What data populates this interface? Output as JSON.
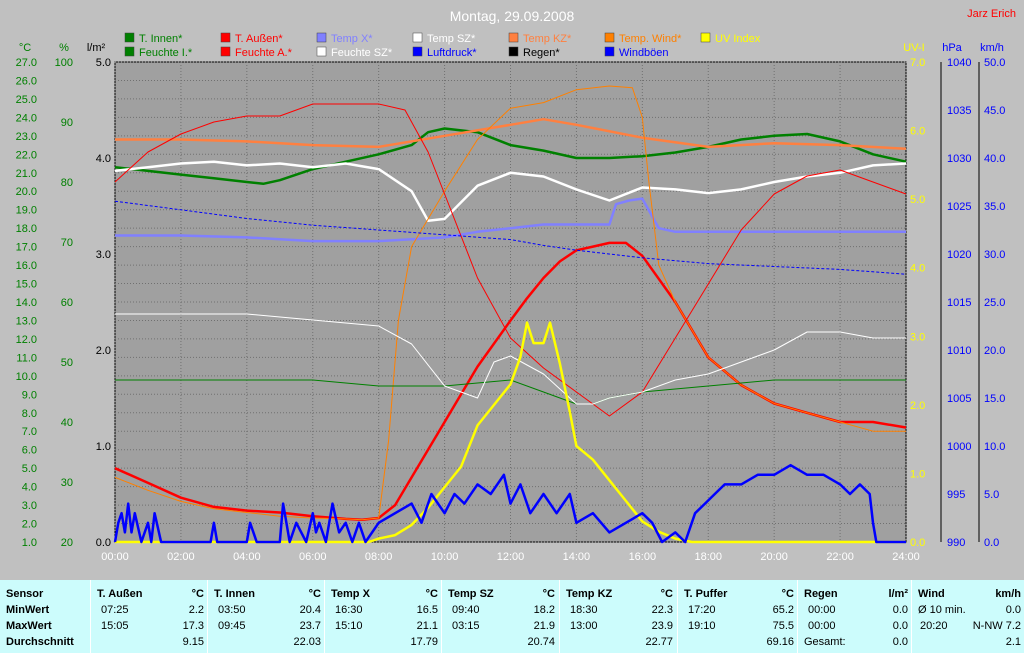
{
  "header": {
    "title": "Montag, 29.09.2008",
    "author": "Jarz Erich"
  },
  "axis_units": {
    "temp": "°C",
    "humidity": "%",
    "rain": "l/m²",
    "uv": "UV-I",
    "pressure": "hPa",
    "wind": "km/h"
  },
  "legend": [
    {
      "label": "T. Innen*",
      "color": "#008000"
    },
    {
      "label": "T. Außen*",
      "color": "#ff0000"
    },
    {
      "label": "Temp X*",
      "color": "#8080ff"
    },
    {
      "label": "Temp SZ*",
      "color": "#ffffff"
    },
    {
      "label": "Temp KZ*",
      "color": "#ff8040"
    },
    {
      "label": "Temp. Wind*",
      "color": "#ff8000"
    },
    {
      "label": "UV Index",
      "color": "#ffff00"
    },
    {
      "label": "Feuchte I.*",
      "color": "#008000"
    },
    {
      "label": "Feuchte A.*",
      "color": "#ff0000"
    },
    {
      "label": "Feuchte SZ*",
      "color": "#ffffff"
    },
    {
      "label": "Luftdruck*",
      "color": "#0000ff"
    },
    {
      "label": "Regen*",
      "color": "#000000"
    },
    {
      "label": "Windböen",
      "color": "#0000ff"
    }
  ],
  "chart_data": {
    "type": "line",
    "title": "Montag, 29.09.2008",
    "x_ticks": [
      "00:00",
      "02:00",
      "04:00",
      "06:00",
      "08:00",
      "10:00",
      "12:00",
      "14:00",
      "16:00",
      "18:00",
      "20:00",
      "22:00",
      "24:00"
    ],
    "axes": {
      "temp": {
        "range": [
          1.0,
          27.0
        ],
        "ticks": [
          "27.0",
          "26.0",
          "25.0",
          "24.0",
          "23.0",
          "22.0",
          "21.0",
          "20.0",
          "19.0",
          "18.0",
          "17.0",
          "16.0",
          "15.0",
          "14.0",
          "13.0",
          "12.0",
          "11.0",
          "10.0",
          "9.0",
          "8.0",
          "7.0",
          "6.0",
          "5.0",
          "4.0",
          "3.0",
          "2.0",
          "1.0"
        ],
        "color": "#008000"
      },
      "humidity": {
        "range": [
          20,
          100
        ],
        "ticks": [
          "100",
          "90",
          "80",
          "70",
          "60",
          "50",
          "40",
          "30",
          "20"
        ],
        "color": "#008000"
      },
      "rain": {
        "range": [
          0.0,
          5.0
        ],
        "ticks": [
          "5.0",
          "4.0",
          "3.0",
          "2.0",
          "1.0",
          "0.0"
        ],
        "color": "#000000"
      },
      "uv": {
        "range": [
          0.0,
          7.0
        ],
        "ticks": [
          "7.0",
          "6.0",
          "5.0",
          "4.0",
          "3.0",
          "2.0",
          "1.0",
          "0.0"
        ],
        "color": "#ffff00"
      },
      "pressure": {
        "range": [
          990,
          1040
        ],
        "ticks": [
          "1040",
          "1035",
          "1030",
          "1025",
          "1020",
          "1015",
          "1010",
          "1005",
          "1000",
          "995",
          "990"
        ],
        "color": "#0000ff"
      },
      "wind": {
        "range": [
          0.0,
          50.0
        ],
        "ticks": [
          "50.0",
          "45.0",
          "40.0",
          "35.0",
          "30.0",
          "25.0",
          "20.0",
          "15.0",
          "10.0",
          "5.0",
          "0.0"
        ],
        "color": "#0000ff"
      }
    },
    "grid": true,
    "series": [
      {
        "name": "T. Außen*",
        "axis": "temp",
        "color": "#ff0000",
        "width": 2.5,
        "x": [
          0,
          1,
          2,
          3,
          4,
          5,
          6,
          7,
          7.5,
          8,
          8.5,
          9,
          10,
          11,
          12,
          12.5,
          13,
          13.5,
          14,
          14.5,
          15,
          15.5,
          16,
          17,
          18,
          19,
          20,
          21,
          22,
          23,
          24
        ],
        "y": [
          5.0,
          4.2,
          3.4,
          2.9,
          2.7,
          2.6,
          2.4,
          2.25,
          2.2,
          2.3,
          3.0,
          4.5,
          7.5,
          10.5,
          13.0,
          14.2,
          15.3,
          16.2,
          16.8,
          17.0,
          17.2,
          17.2,
          16.5,
          14.0,
          11.0,
          9.5,
          8.5,
          8.0,
          7.5,
          7.5,
          7.2
        ]
      },
      {
        "name": "T. Innen*",
        "axis": "temp",
        "color": "#008000",
        "width": 2.5,
        "x": [
          0,
          1,
          2,
          3,
          4,
          4.5,
          5,
          6,
          7,
          8,
          9,
          9.5,
          10,
          11,
          12,
          13,
          14,
          15,
          16,
          17,
          18,
          19,
          20,
          21,
          22,
          23,
          24
        ],
        "y": [
          21.3,
          21.1,
          20.9,
          20.7,
          20.5,
          20.4,
          20.6,
          21.2,
          21.6,
          22.0,
          22.5,
          23.2,
          23.4,
          23.2,
          22.5,
          22.2,
          21.8,
          21.8,
          21.9,
          22.1,
          22.4,
          22.8,
          23.0,
          23.1,
          22.7,
          22.0,
          21.6
        ]
      },
      {
        "name": "Temp KZ*",
        "axis": "temp",
        "color": "#ff8040",
        "width": 2.5,
        "x": [
          0,
          2,
          4,
          6,
          8,
          10,
          12,
          13,
          14,
          16,
          18,
          20,
          22,
          24
        ],
        "y": [
          22.8,
          22.8,
          22.7,
          22.5,
          22.4,
          23.0,
          23.6,
          23.9,
          23.6,
          22.9,
          22.4,
          22.6,
          22.5,
          22.3
        ]
      },
      {
        "name": "Temp SZ*",
        "axis": "temp",
        "color": "#ffffff",
        "width": 2.5,
        "x": [
          0,
          1,
          2,
          3,
          4,
          5,
          6,
          7,
          8,
          9,
          9.5,
          10,
          11,
          12,
          13,
          14,
          15,
          16,
          17,
          18,
          19,
          20,
          21,
          22,
          23,
          24
        ],
        "y": [
          21.1,
          21.3,
          21.5,
          21.6,
          21.4,
          21.5,
          21.3,
          21.5,
          21.2,
          20.0,
          18.4,
          18.5,
          20.3,
          21.0,
          20.8,
          20.1,
          19.5,
          20.2,
          20.1,
          19.9,
          20.1,
          20.5,
          20.8,
          21.0,
          21.4,
          21.5
        ]
      },
      {
        "name": "Temp X*",
        "axis": "temp",
        "color": "#8080ff",
        "width": 2.5,
        "x": [
          0,
          2,
          4,
          6,
          8,
          10,
          11,
          12,
          13,
          15,
          15.2,
          15.6,
          16,
          16.5,
          17,
          18,
          20,
          22,
          24
        ],
        "y": [
          17.6,
          17.6,
          17.5,
          17.3,
          17.3,
          17.5,
          17.8,
          18.0,
          18.2,
          18.2,
          19.3,
          19.5,
          19.6,
          18.0,
          17.8,
          17.8,
          17.8,
          17.8,
          17.8
        ]
      },
      {
        "name": "Temp. Wind*",
        "axis": "temp",
        "color": "#ff8000",
        "width": 1,
        "x": [
          0,
          1,
          2,
          3,
          4,
          5,
          6,
          7,
          7.5,
          8,
          8.3,
          8.6,
          9,
          10,
          11,
          12,
          13,
          14,
          15,
          15.7,
          16,
          16.2,
          16.5,
          17,
          18,
          19,
          20,
          21,
          22,
          23,
          24
        ],
        "y": [
          4.5,
          3.8,
          3.2,
          2.8,
          2.6,
          2.4,
          2.3,
          2.25,
          2.2,
          2.3,
          6.5,
          13.0,
          17.0,
          20.0,
          22.8,
          24.5,
          24.8,
          25.5,
          25.7,
          25.6,
          24.0,
          20.5,
          16.0,
          14.0,
          11.0,
          9.5,
          8.5,
          8.0,
          7.5,
          7.0,
          7.0
        ]
      },
      {
        "name": "Feuchte A.*",
        "axis": "humidity",
        "color": "#ff0000",
        "width": 1,
        "x": [
          0,
          1,
          2,
          3,
          4,
          5,
          6,
          7,
          8,
          8.8,
          9.5,
          10,
          11,
          12,
          13,
          14,
          15,
          16,
          17,
          18,
          19,
          20,
          21,
          22,
          23,
          24
        ],
        "y": [
          80,
          85,
          88,
          90,
          91,
          91,
          93,
          93,
          93,
          92,
          85,
          78,
          64,
          54,
          49,
          45,
          41,
          45,
          54,
          63,
          72,
          78,
          81,
          82,
          80,
          78
        ]
      },
      {
        "name": "Feuchte I.*",
        "axis": "humidity",
        "color": "#008000",
        "width": 1,
        "x": [
          0,
          2,
          4,
          6,
          8,
          10,
          12,
          13,
          14,
          14.5,
          15,
          16,
          18,
          20,
          22,
          24
        ],
        "y": [
          47,
          47,
          47,
          47,
          46,
          46,
          47,
          45,
          43,
          43,
          44,
          45,
          46,
          47,
          47,
          47
        ]
      },
      {
        "name": "Feuchte SZ*",
        "axis": "humidity",
        "color": "#ffffff",
        "width": 1,
        "x": [
          0,
          2,
          4,
          6,
          8,
          9,
          10,
          11,
          11.5,
          12,
          13,
          14,
          14.5,
          15,
          16,
          17,
          18,
          19,
          20,
          21,
          22,
          23,
          24
        ],
        "y": [
          58,
          58,
          58,
          57,
          56,
          53,
          46,
          44,
          50,
          51,
          48,
          43,
          43,
          44,
          45,
          47,
          48,
          50,
          52,
          55,
          55,
          54,
          54
        ]
      },
      {
        "name": "Luftdruck*",
        "axis": "pressure",
        "color": "#0000ff",
        "width": 1,
        "dash": "3,2",
        "x": [
          0,
          2,
          4,
          6,
          8,
          10,
          12,
          13,
          14,
          16,
          18,
          20,
          22,
          24
        ],
        "y": [
          1025.5,
          1024.6,
          1023.7,
          1023.0,
          1022.5,
          1022.0,
          1021.5,
          1020.9,
          1020.4,
          1019.6,
          1019.0,
          1018.7,
          1018.4,
          1017.9
        ]
      },
      {
        "name": "UV Index",
        "axis": "uv",
        "color": "#ffff00",
        "width": 2.5,
        "x": [
          0,
          7.7,
          8.0,
          8.5,
          9,
          9.5,
          10,
          10.5,
          11,
          11.5,
          12,
          12.3,
          12.5,
          12.7,
          13,
          13.2,
          13.5,
          13.8,
          14,
          14.5,
          15,
          15.5,
          16,
          16.5,
          17,
          17.5,
          18,
          24
        ],
        "y": [
          0,
          0,
          0.05,
          0.1,
          0.25,
          0.5,
          0.8,
          1.1,
          1.7,
          2.0,
          2.3,
          2.7,
          3.2,
          2.9,
          2.9,
          3.2,
          2.6,
          1.9,
          1.4,
          1.2,
          0.9,
          0.6,
          0.3,
          0.15,
          0.05,
          0,
          0,
          0
        ]
      },
      {
        "name": "Windböen",
        "axis": "wind",
        "color": "#0000ff",
        "width": 2.5,
        "x": [
          0,
          0.1,
          0.2,
          0.3,
          0.4,
          0.5,
          0.6,
          0.8,
          0.9,
          1.0,
          1.1,
          1.2,
          1.4,
          1.6,
          1.8,
          2.0,
          2.5,
          2.9,
          3.0,
          3.1,
          3.3,
          3.5,
          4.0,
          4.1,
          4.3,
          4.5,
          5.0,
          5.1,
          5.3,
          5.5,
          5.8,
          6.0,
          6.1,
          6.2,
          6.4,
          6.6,
          6.8,
          7.0,
          7.2,
          7.4,
          7.6,
          8.0,
          8.5,
          9.0,
          9.3,
          9.6,
          10.0,
          10.3,
          10.6,
          11.0,
          11.4,
          11.8,
          12.0,
          12.3,
          12.6,
          13.0,
          13.4,
          13.8,
          14.0,
          14.5,
          15.0,
          15.5,
          16.0,
          16.3,
          16.6,
          17.0,
          17.3,
          17.6,
          17.9,
          18.2,
          18.5,
          19.0,
          19.5,
          20.0,
          20.5,
          21.0,
          21.5,
          22.0,
          22.3,
          22.6,
          22.9,
          23.0,
          23.1,
          24.0
        ],
        "y": [
          0,
          2,
          3,
          1,
          4,
          1,
          3,
          0,
          1,
          2,
          0,
          3,
          0,
          0,
          0,
          0,
          0,
          0,
          2,
          0,
          0,
          0,
          0,
          2,
          0,
          0,
          0,
          4,
          0,
          2,
          0,
          3,
          1,
          2,
          0,
          4,
          1,
          2,
          0,
          2,
          0,
          2,
          3,
          4,
          2,
          5,
          3,
          5,
          4,
          6,
          5,
          7,
          4,
          6,
          3,
          5,
          3,
          5,
          2,
          3,
          1,
          2,
          3,
          2,
          0,
          1,
          0,
          3,
          4,
          5,
          6,
          6,
          7,
          7,
          8,
          7,
          7,
          6,
          5,
          6,
          5,
          2,
          0,
          0
        ]
      }
    ],
    "rain_values": [
      0,
      0
    ],
    "rain_times": [
      "00:00",
      "24:00"
    ]
  },
  "stats": {
    "row_labels": [
      "Sensor",
      "MinWert",
      "MaxWert",
      "Durchschnitt"
    ],
    "columns": [
      {
        "name": "T. Außen",
        "unit": "°C",
        "min_time": "07:25",
        "min": "2.2",
        "max_time": "15:05",
        "max": "17.3",
        "avg": "9.15"
      },
      {
        "name": "T. Innen",
        "unit": "°C",
        "min_time": "03:50",
        "min": "20.4",
        "max_time": "09:45",
        "max": "23.7",
        "avg": "22.03"
      },
      {
        "name": "Temp X",
        "unit": "°C",
        "min_time": "16:30",
        "min": "16.5",
        "max_time": "15:10",
        "max": "21.1",
        "avg": "17.79"
      },
      {
        "name": "Temp SZ",
        "unit": "°C",
        "min_time": "09:40",
        "min": "18.2",
        "max_time": "03:15",
        "max": "21.9",
        "avg": "20.74"
      },
      {
        "name": "Temp KZ",
        "unit": "°C",
        "min_time": "18:30",
        "min": "22.3",
        "max_time": "13:00",
        "max": "23.9",
        "avg": "22.77"
      },
      {
        "name": "T. Puffer",
        "unit": "°C",
        "min_time": "17:20",
        "min": "65.2",
        "max_time": "19:10",
        "max": "75.5",
        "avg": "69.16"
      }
    ],
    "rain": {
      "name": "Regen",
      "unit": "l/m²",
      "r1_time": "00:00",
      "r1": "0.0",
      "r2_time": "00:00",
      "r2": "0.0",
      "r3_label": "Gesamt:",
      "r3": "0.0"
    },
    "wind": {
      "name": "Wind",
      "unit": "km/h",
      "r1_label": "Ø 10 min.",
      "r1": "0.0",
      "r2_time": "20:20",
      "r2": "N-NW 7.2",
      "r3": "2.1"
    }
  }
}
